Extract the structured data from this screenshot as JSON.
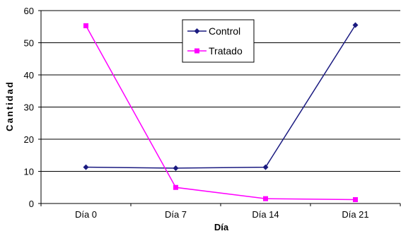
{
  "chart_data": {
    "type": "line",
    "categories": [
      "Día 0",
      "Día 7",
      "Día 14",
      "Día 21"
    ],
    "series": [
      {
        "name": "Control",
        "values": [
          11.3,
          11.0,
          11.3,
          55.5
        ],
        "color": "#1a1a80",
        "marker": "diamond"
      },
      {
        "name": "Tratado",
        "values": [
          55.3,
          5.0,
          1.5,
          1.2
        ],
        "color": "#ff00ff",
        "marker": "square"
      }
    ],
    "y_ticks": [
      0,
      10,
      20,
      30,
      40,
      50,
      60
    ],
    "ylim": [
      0,
      60
    ],
    "xlabel": "Día",
    "ylabel": "Cantidad",
    "grid": true,
    "legend_placement": "top-center"
  }
}
